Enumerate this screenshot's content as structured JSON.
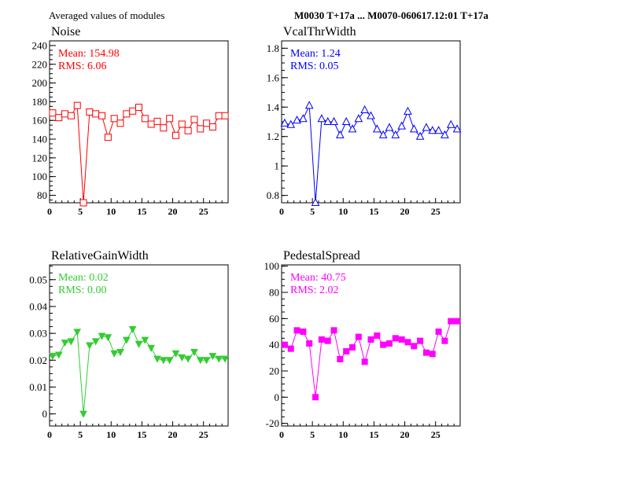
{
  "header": {
    "left": "Averaged values of modules",
    "right": "M0030 T+17a ... M0070-060617.12:01 T+17a"
  },
  "chart_data": [
    {
      "type": "line",
      "title": "Noise",
      "color": "#ff0000",
      "marker": "open-square",
      "stats": {
        "mean": "Mean: 154.98",
        "rms": "RMS:  6.06"
      },
      "xlim": [
        0,
        29
      ],
      "ylim": [
        72,
        245
      ],
      "xticks": [
        0,
        5,
        10,
        15,
        20,
        25
      ],
      "yticks": [
        80,
        100,
        120,
        140,
        160,
        180,
        200,
        220,
        240
      ],
      "ytick_labels": [
        "80",
        "100",
        "120",
        "140",
        "160",
        "180",
        "200",
        "220",
        "240"
      ],
      "x": [
        0.5,
        1.5,
        2.5,
        3.5,
        4.5,
        5.5,
        6.5,
        7.5,
        8.5,
        9.5,
        10.5,
        11.5,
        12.5,
        13.5,
        14.5,
        15.5,
        16.5,
        17.5,
        18.5,
        19.5,
        20.5,
        21.5,
        22.5,
        23.5,
        24.5,
        25.5,
        26.5,
        27.5,
        28.5
      ],
      "values": [
        168,
        163,
        167,
        165,
        176,
        72,
        169,
        167,
        165,
        142,
        162,
        157,
        167,
        170,
        174,
        162,
        156,
        159,
        152,
        162,
        144,
        156,
        149,
        161,
        151,
        157,
        153,
        165,
        165
      ]
    },
    {
      "type": "line",
      "title": "VcalThrWidth",
      "color": "#0000ff",
      "marker": "open-triangle-up",
      "stats": {
        "mean": "Mean: 1.24",
        "rms": "RMS:  0.05"
      },
      "xlim": [
        0,
        29
      ],
      "ylim": [
        0.75,
        1.85
      ],
      "xticks": [
        0,
        5,
        10,
        15,
        20,
        25
      ],
      "yticks": [
        0.8,
        1.0,
        1.2,
        1.4,
        1.6,
        1.8
      ],
      "ytick_labels": [
        "0.8",
        "1",
        "1.2",
        "1.4",
        "1.6",
        "1.8"
      ],
      "x": [
        0.5,
        1.5,
        2.5,
        3.5,
        4.5,
        5.5,
        6.5,
        7.5,
        8.5,
        9.5,
        10.5,
        11.5,
        12.5,
        13.5,
        14.5,
        15.5,
        16.5,
        17.5,
        18.5,
        19.5,
        20.5,
        21.5,
        22.5,
        23.5,
        24.5,
        25.5,
        26.5,
        27.5,
        28.5
      ],
      "values": [
        1.29,
        1.28,
        1.31,
        1.32,
        1.41,
        0.75,
        1.32,
        1.3,
        1.3,
        1.21,
        1.3,
        1.25,
        1.32,
        1.38,
        1.34,
        1.25,
        1.21,
        1.26,
        1.21,
        1.27,
        1.37,
        1.25,
        1.2,
        1.26,
        1.24,
        1.24,
        1.21,
        1.28,
        1.25
      ]
    },
    {
      "type": "line",
      "title": "RelativeGainWidth",
      "color": "#33cc33",
      "marker": "filled-triangle-down",
      "stats": {
        "mean": "Mean: 0.02",
        "rms": "RMS:  0.00"
      },
      "xlim": [
        0,
        29
      ],
      "ylim": [
        -0.0045,
        0.0555
      ],
      "xticks": [
        0,
        5,
        10,
        15,
        20,
        25
      ],
      "yticks": [
        0,
        0.01,
        0.02,
        0.03,
        0.04,
        0.05
      ],
      "ytick_labels": [
        "0",
        "0.01",
        "0.02",
        "0.03",
        "0.04",
        "0.05"
      ],
      "x": [
        0.5,
        1.5,
        2.5,
        3.5,
        4.5,
        5.5,
        6.5,
        7.5,
        8.5,
        9.5,
        10.5,
        11.5,
        12.5,
        13.5,
        14.5,
        15.5,
        16.5,
        17.5,
        18.5,
        19.5,
        20.5,
        21.5,
        22.5,
        23.5,
        24.5,
        25.5,
        26.5,
        27.5,
        28.5
      ],
      "values": [
        0.0215,
        0.022,
        0.0265,
        0.027,
        0.0305,
        0.0,
        0.0255,
        0.027,
        0.029,
        0.0285,
        0.0225,
        0.023,
        0.0275,
        0.0315,
        0.026,
        0.0275,
        0.0245,
        0.0205,
        0.02,
        0.02,
        0.0225,
        0.021,
        0.0205,
        0.023,
        0.02,
        0.02,
        0.0215,
        0.0205,
        0.0205
      ]
    },
    {
      "type": "line",
      "title": "PedestalSpread",
      "color": "#ff00ff",
      "marker": "filled-square",
      "stats": {
        "mean": "Mean: 40.75",
        "rms": "RMS:  2.02"
      },
      "xlim": [
        0,
        29
      ],
      "ylim": [
        -22,
        101
      ],
      "xticks": [
        0,
        5,
        10,
        15,
        20,
        25
      ],
      "yticks": [
        -20,
        0,
        20,
        40,
        60,
        80,
        100
      ],
      "ytick_labels": [
        "-20",
        "0",
        "20",
        "40",
        "60",
        "80",
        "100"
      ],
      "x": [
        0.5,
        1.5,
        2.5,
        3.5,
        4.5,
        5.5,
        6.5,
        7.5,
        8.5,
        9.5,
        10.5,
        11.5,
        12.5,
        13.5,
        14.5,
        15.5,
        16.5,
        17.5,
        18.5,
        19.5,
        20.5,
        21.5,
        22.5,
        23.5,
        24.5,
        25.5,
        26.5,
        27.5,
        28.5
      ],
      "values": [
        40,
        37,
        51,
        50,
        41,
        0,
        44,
        43,
        51,
        29,
        35,
        38,
        46,
        27,
        44,
        47,
        40,
        41,
        45,
        44,
        42,
        39,
        43,
        34,
        33,
        50,
        43,
        58,
        58
      ]
    }
  ]
}
